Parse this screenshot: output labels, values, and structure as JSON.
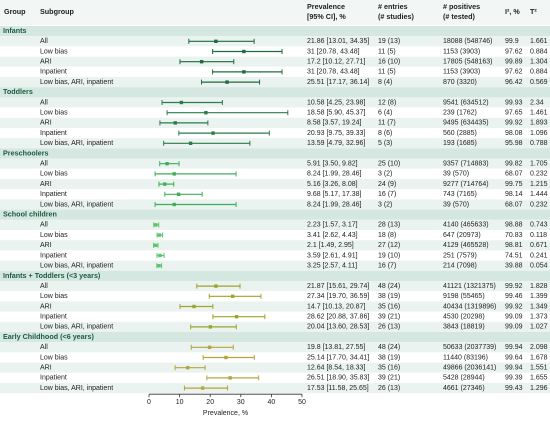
{
  "header": {
    "group": "Group",
    "subgroup": "Subgroup",
    "prevalence": [
      "Prevalence",
      "[95% CI], %"
    ],
    "entries": [
      "# entries",
      "(# studies)"
    ],
    "positives": [
      "# positives",
      "(# tested)"
    ],
    "i2": "I², %",
    "tau2": "T²"
  },
  "axis": {
    "label": "Prevalence, %",
    "xlim": [
      0,
      50
    ],
    "xticks": [
      0,
      10,
      20,
      30,
      40,
      50
    ]
  },
  "groups": [
    {
      "name": "Infants",
      "color": "#1e6b3f",
      "rows": [
        {
          "subgroup": "All",
          "ci_label": "21.86 [13.01, 34.35]",
          "estimate": 21.86,
          "lower": 13.01,
          "upper": 34.35,
          "entries": "19 (13)",
          "positives": "18088 (548746)",
          "i2": 99.9,
          "tau2": 1.661
        },
        {
          "subgroup": "Low bias",
          "ci_label": "31 [20.78, 43.48]",
          "estimate": 31,
          "lower": 20.78,
          "upper": 43.48,
          "entries": "11 (5)",
          "positives": "1153 (3903)",
          "i2": 97.62,
          "tau2": 0.884
        },
        {
          "subgroup": "ARI",
          "ci_label": "17.2 [10.12, 27.71]",
          "estimate": 17.2,
          "lower": 10.12,
          "upper": 27.71,
          "entries": "16 (10)",
          "positives": "17805 (548163)",
          "i2": 99.89,
          "tau2": 1.304
        },
        {
          "subgroup": "Inpatient",
          "ci_label": "31 [20.78, 43.48]",
          "estimate": 31,
          "lower": 20.78,
          "upper": 43.48,
          "entries": "11 (5)",
          "positives": "1153 (3903)",
          "i2": 97.62,
          "tau2": 0.884
        },
        {
          "subgroup": "Low bias, ARI, inpatient",
          "ci_label": "25.51 [17.17, 36.14]",
          "estimate": 25.51,
          "lower": 17.17,
          "upper": 36.14,
          "entries": "8 (4)",
          "positives": "870 (3320)",
          "i2": 96.42,
          "tau2": 0.569
        }
      ]
    },
    {
      "name": "Toddlers",
      "color": "#2a7d48",
      "rows": [
        {
          "subgroup": "All",
          "ci_label": "10.58 [4.25, 23.98]",
          "estimate": 10.58,
          "lower": 4.25,
          "upper": 23.98,
          "entries": "12 (8)",
          "positives": "9541 (634512)",
          "i2": 99.93,
          "tau2": 2.34
        },
        {
          "subgroup": "Low bias",
          "ci_label": "18.58 [5.90, 45.37]",
          "estimate": 18.58,
          "lower": 5.9,
          "upper": 45.37,
          "entries": "6 (4)",
          "positives": "239 (1762)",
          "i2": 97.65,
          "tau2": 1.461
        },
        {
          "subgroup": "ARI",
          "ci_label": "8.58 [3.57, 19.24]",
          "estimate": 8.58,
          "lower": 3.57,
          "upper": 19.24,
          "entries": "11 (7)",
          "positives": "9495 (634435)",
          "i2": 99.92,
          "tau2": 1.893
        },
        {
          "subgroup": "Inpatient",
          "ci_label": "20.93 [9.75, 39.33]",
          "estimate": 20.93,
          "lower": 9.75,
          "upper": 39.33,
          "entries": "8 (6)",
          "positives": "560 (2885)",
          "i2": 98.08,
          "tau2": 1.096
        },
        {
          "subgroup": "Low bias, ARI, inpatient",
          "ci_label": "13.59 [4.79, 32.96]",
          "estimate": 13.59,
          "lower": 4.79,
          "upper": 32.96,
          "entries": "5 (3)",
          "positives": "193 (1685)",
          "i2": 95.98,
          "tau2": 0.788
        }
      ]
    },
    {
      "name": "Preschoolers",
      "color": "#3fae5a",
      "rows": [
        {
          "subgroup": "All",
          "ci_label": "5.91 [3.50, 9.82]",
          "estimate": 5.91,
          "lower": 3.5,
          "upper": 9.82,
          "entries": "25 (10)",
          "positives": "9357 (714883)",
          "i2": 99.82,
          "tau2": 1.705
        },
        {
          "subgroup": "Low bias",
          "ci_label": "8.24 [1.99, 28.46]",
          "estimate": 8.24,
          "lower": 1.99,
          "upper": 28.46,
          "entries": "3 (2)",
          "positives": "39 (570)",
          "i2": 68.07,
          "tau2": 0.232
        },
        {
          "subgroup": "ARI",
          "ci_label": "5.16 [3.26, 8.08]",
          "estimate": 5.16,
          "lower": 3.26,
          "upper": 8.08,
          "entries": "24 (9)",
          "positives": "9277 (714764)",
          "i2": 99.75,
          "tau2": 1.215
        },
        {
          "subgroup": "Inpatient",
          "ci_label": "9.68 [5.17, 17.38]",
          "estimate": 9.68,
          "lower": 5.17,
          "upper": 17.38,
          "entries": "16 (7)",
          "positives": "743 (7165)",
          "i2": 98.14,
          "tau2": 1.444
        },
        {
          "subgroup": "Low bias, ARI, inpatient",
          "ci_label": "8.24 [1.99, 28.46]",
          "estimate": 8.24,
          "lower": 1.99,
          "upper": 28.46,
          "entries": "3 (2)",
          "positives": "39 (570)",
          "i2": 68.07,
          "tau2": 0.232
        }
      ]
    },
    {
      "name": "School children",
      "color": "#5cc46a",
      "rows": [
        {
          "subgroup": "All",
          "ci_label": "2.23 [1.57, 3.17]",
          "estimate": 2.23,
          "lower": 1.57,
          "upper": 3.17,
          "entries": "28 (13)",
          "positives": "4140 (465633)",
          "i2": 98.88,
          "tau2": 0.743
        },
        {
          "subgroup": "Low bias",
          "ci_label": "3.41 [2.62, 4.43]",
          "estimate": 3.41,
          "lower": 2.62,
          "upper": 4.43,
          "entries": "18 (8)",
          "positives": "647 (20973)",
          "i2": 70.83,
          "tau2": 0.118
        },
        {
          "subgroup": "ARI",
          "ci_label": "2.1 [1.49, 2.95]",
          "estimate": 2.1,
          "lower": 1.49,
          "upper": 2.95,
          "entries": "27 (12)",
          "positives": "4129 (465528)",
          "i2": 98.81,
          "tau2": 0.671
        },
        {
          "subgroup": "Inpatient",
          "ci_label": "3.59 [2.61, 4.91]",
          "estimate": 3.59,
          "lower": 2.61,
          "upper": 4.91,
          "entries": "19 (10)",
          "positives": "251 (7579)",
          "i2": 74.51,
          "tau2": 0.241
        },
        {
          "subgroup": "Low bias, ARI, inpatient",
          "ci_label": "3.25 [2.57, 4.11]",
          "estimate": 3.25,
          "lower": 2.57,
          "upper": 4.11,
          "entries": "16 (7)",
          "positives": "214 (7098)",
          "i2": 39.88,
          "tau2": 0.054
        }
      ]
    },
    {
      "name": "Infants + Toddlers (<3 years)",
      "color": "#9aa62c",
      "rows": [
        {
          "subgroup": "All",
          "ci_label": "21.87 [15.61, 29.74]",
          "estimate": 21.87,
          "lower": 15.61,
          "upper": 29.74,
          "entries": "48 (24)",
          "positives": "41121 (1321375)",
          "i2": 99.92,
          "tau2": 1.828
        },
        {
          "subgroup": "Low bias",
          "ci_label": "27.34 [19.70, 36.59]",
          "estimate": 27.34,
          "lower": 19.7,
          "upper": 36.59,
          "entries": "38 (19)",
          "positives": "9198 (55465)",
          "i2": 99.46,
          "tau2": 1.399
        },
        {
          "subgroup": "ARI",
          "ci_label": "14.7 [10.13, 20.87]",
          "estimate": 14.7,
          "lower": 10.13,
          "upper": 20.87,
          "entries": "35 (16)",
          "positives": "40434 (1319896)",
          "i2": 99.92,
          "tau2": 1.349
        },
        {
          "subgroup": "Inpatient",
          "ci_label": "28.62 [20.88, 37.86]",
          "estimate": 28.62,
          "lower": 20.88,
          "upper": 37.86,
          "entries": "39 (21)",
          "positives": "4530 (20298)",
          "i2": 99.09,
          "tau2": 1.373
        },
        {
          "subgroup": "Low bias, ARI, inpatient",
          "ci_label": "20.04 [13.60, 28.53]",
          "estimate": 20.04,
          "lower": 13.6,
          "upper": 28.53,
          "entries": "26 (13)",
          "positives": "3843 (18819)",
          "i2": 99.09,
          "tau2": 1.027
        }
      ]
    },
    {
      "name": "Early Childhood (<6 years)",
      "color": "#b5a540",
      "rows": [
        {
          "subgroup": "All",
          "ci_label": "19.8 [13.81, 27.55]",
          "estimate": 19.8,
          "lower": 13.81,
          "upper": 27.55,
          "entries": "48 (24)",
          "positives": "50633 (2037739)",
          "i2": 99.94,
          "tau2": 2.098
        },
        {
          "subgroup": "Low bias",
          "ci_label": "25.14 [17.70, 34.41]",
          "estimate": 25.14,
          "lower": 17.7,
          "upper": 34.41,
          "entries": "38 (19)",
          "positives": "11440 (83196)",
          "i2": 99.64,
          "tau2": 1.678
        },
        {
          "subgroup": "ARI",
          "ci_label": "12.64 [8.54, 18.33]",
          "estimate": 12.64,
          "lower": 8.54,
          "upper": 18.33,
          "entries": "35 (16)",
          "positives": "49866 (2036141)",
          "i2": 99.94,
          "tau2": 1.551
        },
        {
          "subgroup": "Inpatient",
          "ci_label": "26.51 [18.90, 35.83]",
          "estimate": 26.51,
          "lower": 18.9,
          "upper": 35.83,
          "entries": "39 (21)",
          "positives": "5428 (28944)",
          "i2": 99.39,
          "tau2": 1.655
        },
        {
          "subgroup": "Low bias, ARI, inpatient",
          "ci_label": "17.53 [11.58, 25.65]",
          "estimate": 17.53,
          "lower": 11.58,
          "upper": 25.65,
          "entries": "26 (13)",
          "positives": "4661 (27346)",
          "i2": 99.43,
          "tau2": 1.296
        }
      ]
    }
  ]
}
